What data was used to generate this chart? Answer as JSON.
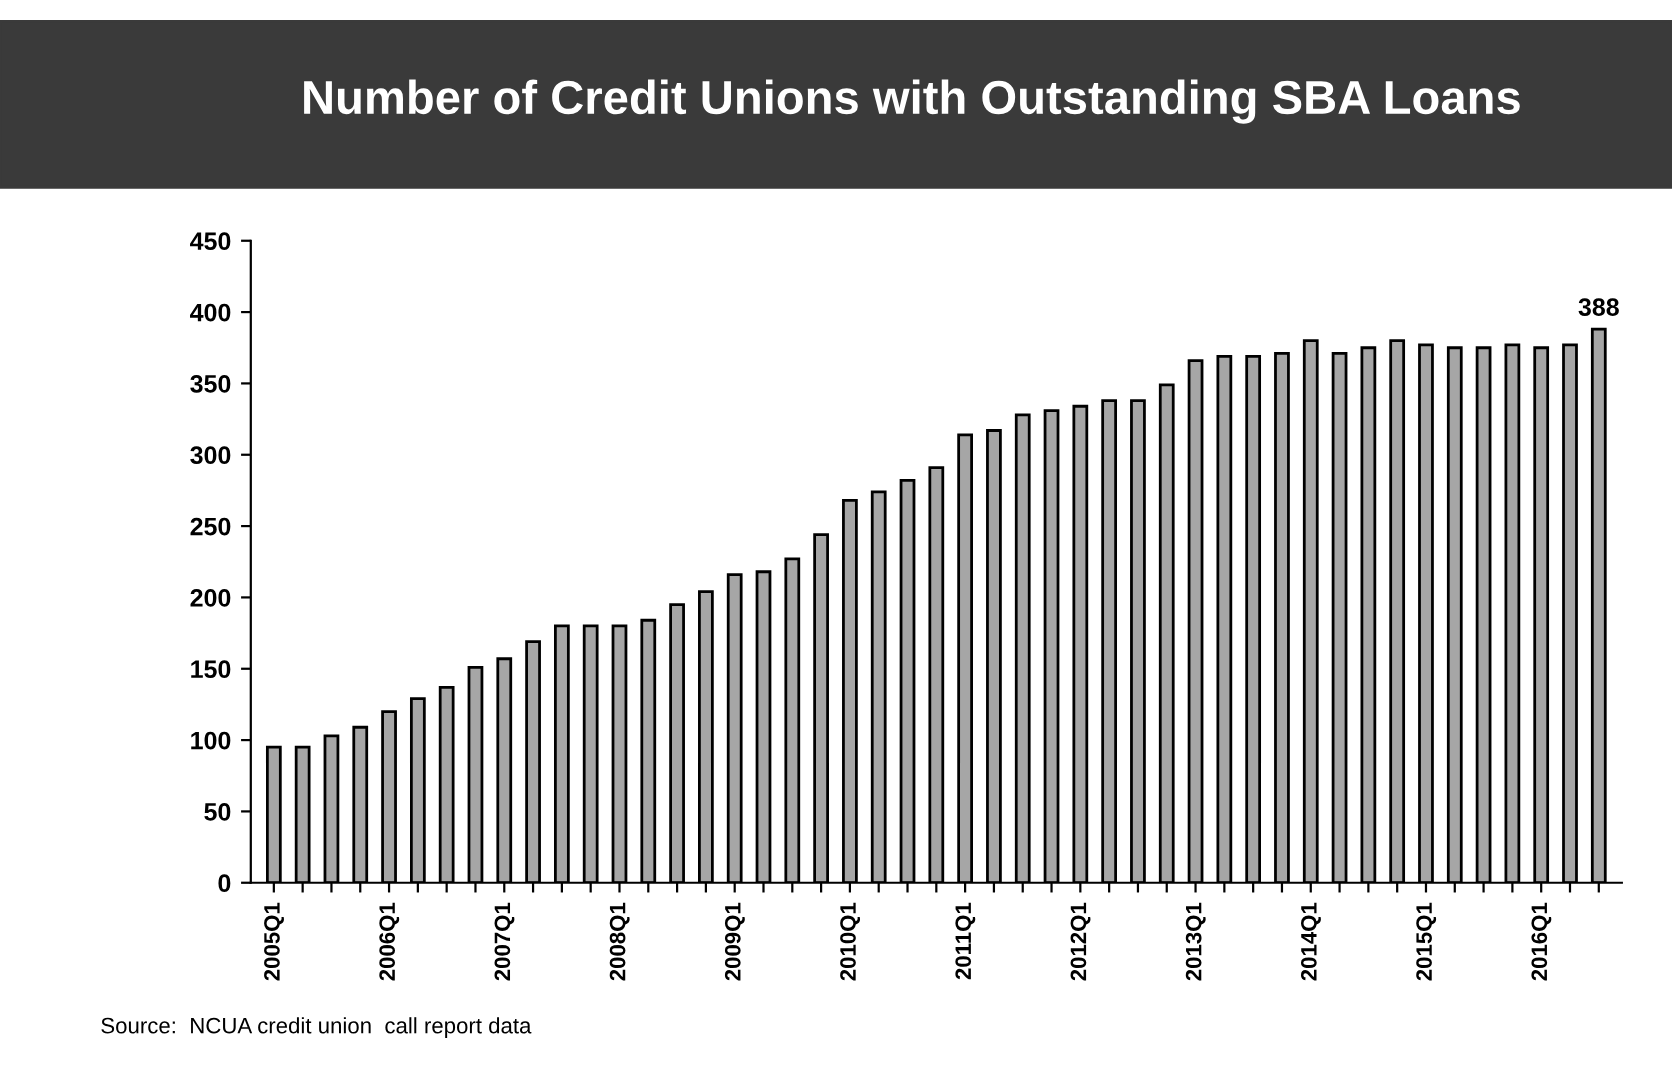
{
  "chart_data": {
    "type": "bar",
    "title": "Number of Credit Unions with Outstanding SBA Loans",
    "categories": [
      "2005Q1",
      null,
      null,
      null,
      "2006Q1",
      null,
      null,
      null,
      "2007Q1",
      null,
      null,
      null,
      "2008Q1",
      null,
      null,
      null,
      "2009Q1",
      null,
      null,
      null,
      "2010Q1",
      null,
      null,
      null,
      "2011Q1",
      null,
      null,
      null,
      "2012Q1",
      null,
      null,
      null,
      "2013Q1",
      null,
      null,
      null,
      "2014Q1",
      null,
      null,
      null,
      "2015Q1",
      null,
      null,
      null,
      "2016Q1",
      null,
      null
    ],
    "values": [
      95,
      95,
      103,
      109,
      120,
      129,
      137,
      151,
      157,
      169,
      180,
      180,
      180,
      184,
      195,
      204,
      216,
      218,
      227,
      244,
      268,
      274,
      282,
      291,
      314,
      317,
      328,
      331,
      334,
      338,
      338,
      349,
      366,
      369,
      369,
      371,
      380,
      371,
      375,
      380,
      377,
      375,
      375,
      377,
      375,
      377,
      388
    ],
    "value_labels": [
      null,
      null,
      null,
      null,
      null,
      null,
      null,
      null,
      null,
      null,
      null,
      null,
      null,
      null,
      null,
      null,
      null,
      null,
      null,
      null,
      null,
      null,
      null,
      null,
      null,
      null,
      null,
      null,
      null,
      null,
      null,
      null,
      null,
      null,
      null,
      null,
      null,
      null,
      null,
      null,
      null,
      null,
      null,
      null,
      null,
      null,
      "388"
    ],
    "color": "#a6a6a6",
    "ylim": [
      0,
      450
    ],
    "yticks": [
      0,
      50,
      100,
      150,
      200,
      250,
      300,
      350,
      400,
      450
    ],
    "grid": false,
    "annotations": [
      "Source:  NCUA credit union  call report data"
    ]
  }
}
